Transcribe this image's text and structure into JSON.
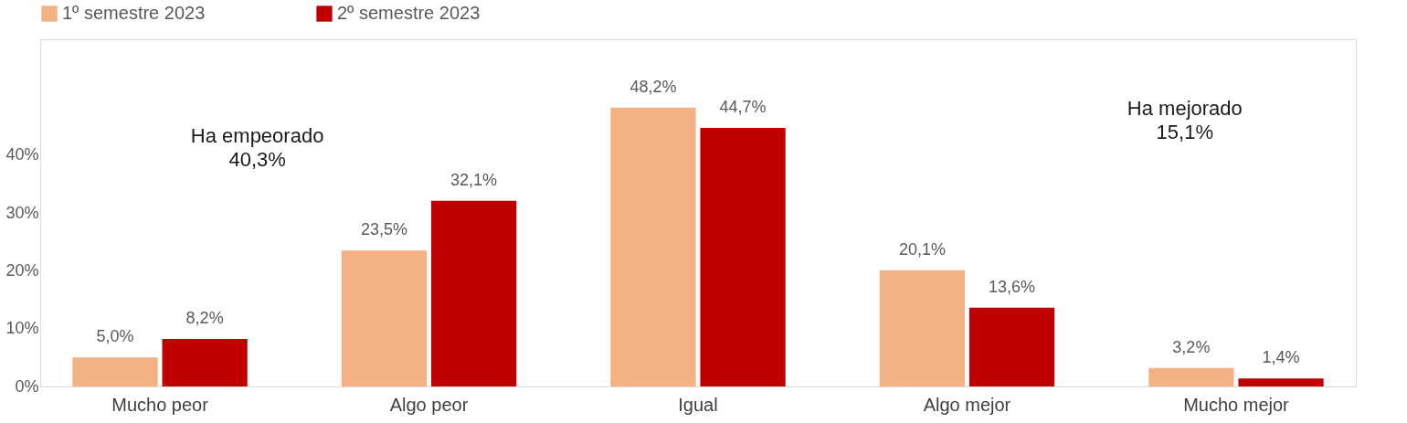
{
  "chart_data": {
    "type": "bar",
    "categories": [
      "Mucho peor",
      "Algo peor",
      "Igual",
      "Algo mejor",
      "Mucho mejor"
    ],
    "series": [
      {
        "name": "1º semestre 2023",
        "color": "#f4b183",
        "values": [
          5.0,
          23.5,
          48.2,
          20.1,
          3.2
        ],
        "value_labels": [
          "5,0%",
          "23,5%",
          "48,2%",
          "20,1%",
          "3,2%"
        ]
      },
      {
        "name": "2º semestre 2023",
        "color": "#c00000",
        "values": [
          8.2,
          32.1,
          44.7,
          13.6,
          1.4
        ],
        "value_labels": [
          "8,2%",
          "32,1%",
          "44,7%",
          "13,6%",
          "1,4%"
        ]
      }
    ],
    "ylim": [
      0,
      60
    ],
    "yticks": [
      {
        "value": 0,
        "label": "0%"
      },
      {
        "value": 10,
        "label": "10%"
      },
      {
        "value": 20,
        "label": "20%"
      },
      {
        "value": 30,
        "label": "30%"
      },
      {
        "value": 40,
        "label": "40%"
      }
    ],
    "grid": false,
    "legend": "top",
    "annotations": [
      "Ha empeorado\n40,3%",
      "Ha mejorado\n15,1%"
    ]
  }
}
